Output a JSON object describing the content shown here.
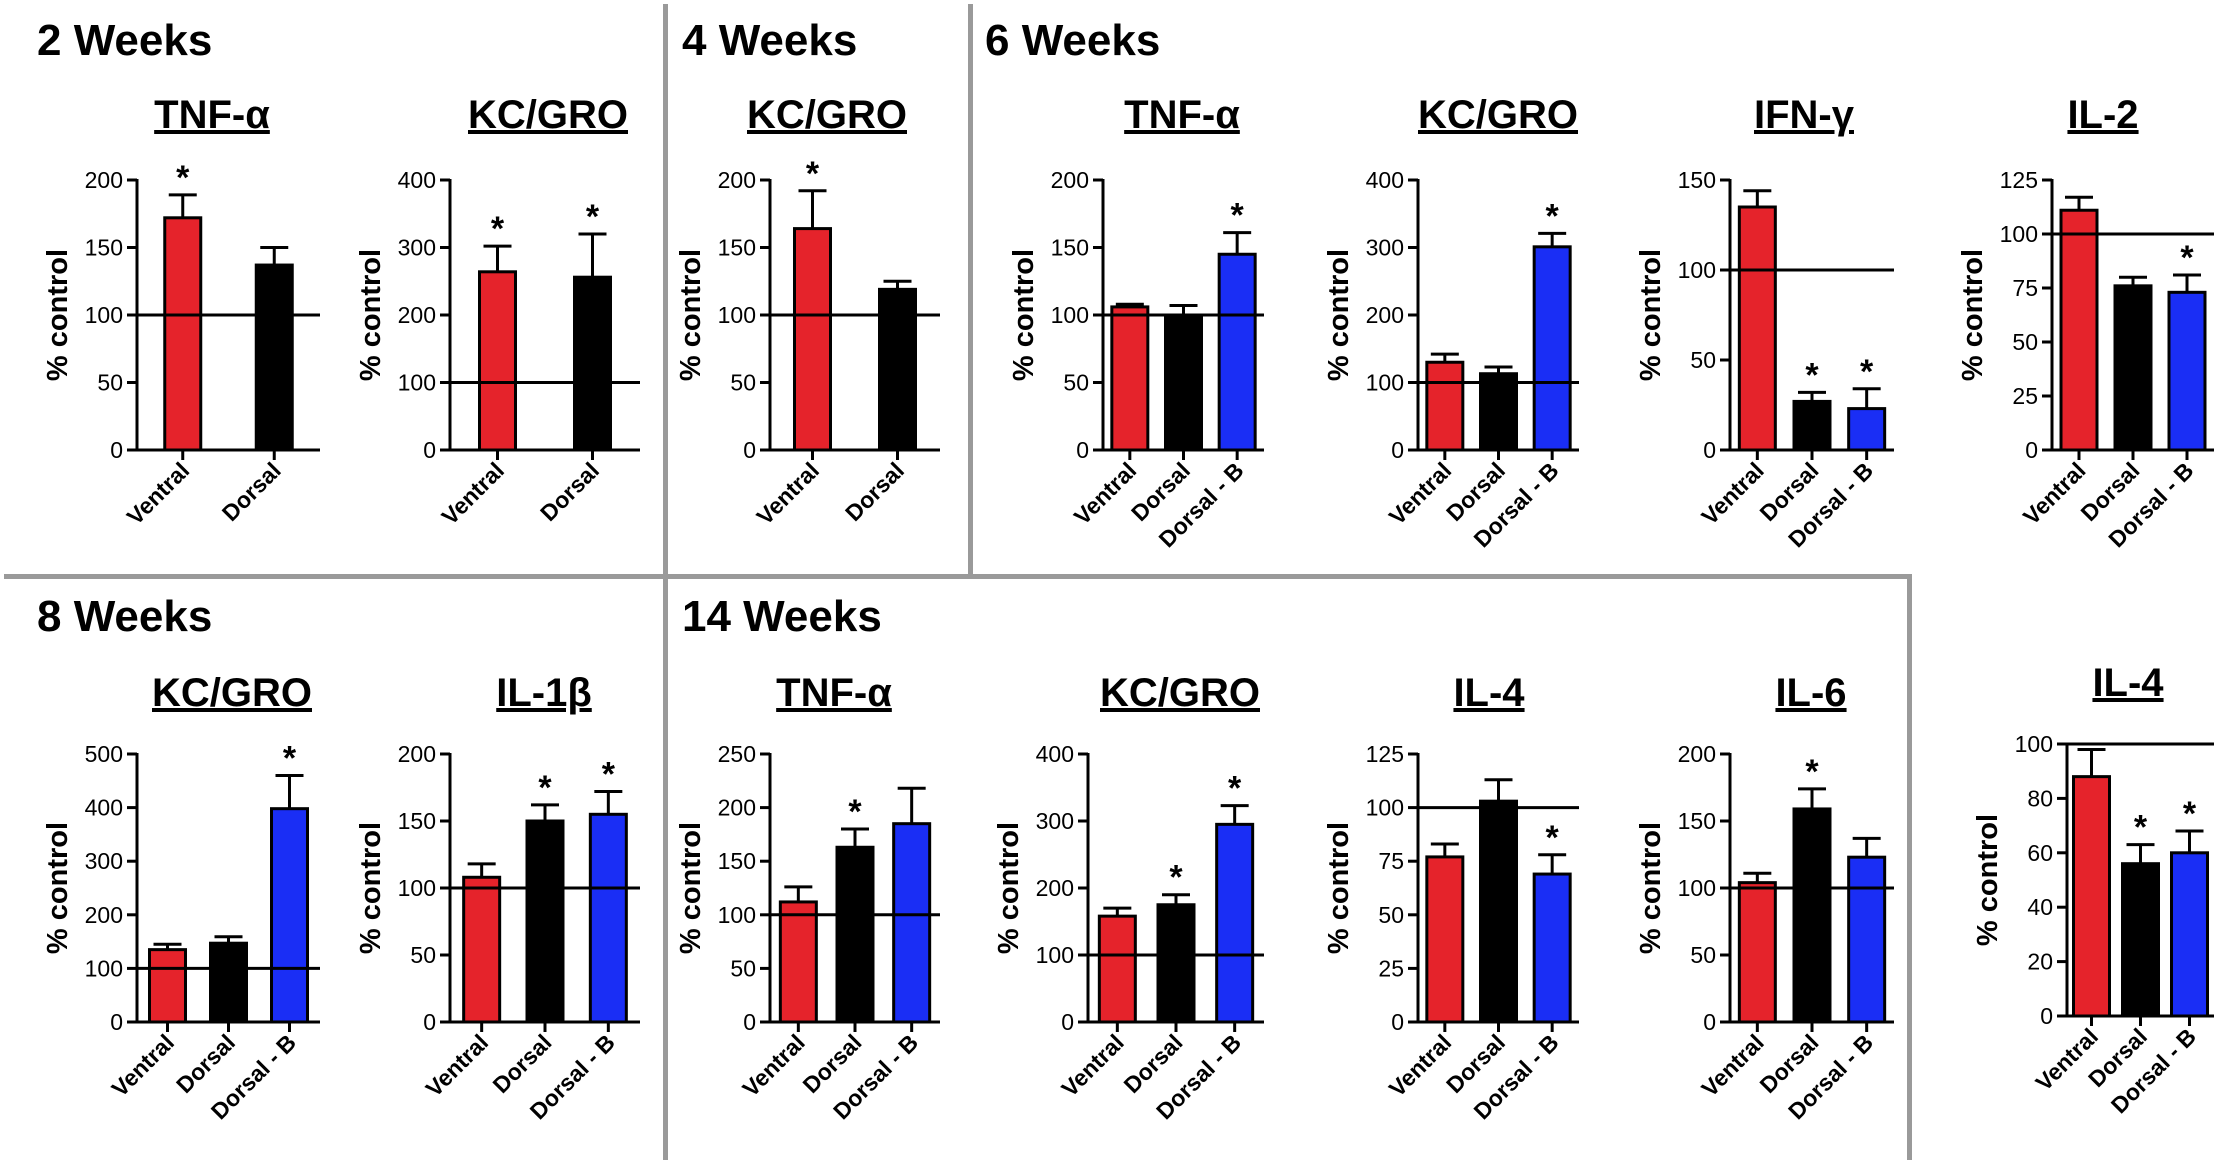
{
  "sections": [
    {
      "label": "2 Weeks"
    },
    {
      "label": "4 Weeks"
    },
    {
      "label": "6 Weeks"
    },
    {
      "label": "8 Weeks"
    },
    {
      "label": "14 Weeks"
    }
  ],
  "colors": {
    "ventral": "#e5232b",
    "dorsal": "#000000",
    "dorsal_b": "#1a2ef5",
    "divider": "#9a9a9a"
  },
  "chart_data": [
    {
      "type": "bar",
      "section": "2 Weeks",
      "title": "TNF-α",
      "ylabel": "% control",
      "ylim": [
        0,
        200
      ],
      "yticks": [
        0,
        50,
        100,
        150,
        200
      ],
      "reference_line": 100,
      "categories": [
        "Ventral",
        "Dorsal"
      ],
      "values": [
        172,
        137
      ],
      "errors": [
        17,
        13
      ],
      "significant": [
        true,
        false
      ]
    },
    {
      "type": "bar",
      "section": "2 Weeks",
      "title": "KC/GRO",
      "ylabel": "% control",
      "ylim": [
        0,
        400
      ],
      "yticks": [
        0,
        100,
        200,
        300,
        400
      ],
      "reference_line": 100,
      "categories": [
        "Ventral",
        "Dorsal"
      ],
      "values": [
        264,
        256
      ],
      "errors": [
        38,
        64
      ],
      "significant": [
        true,
        true
      ]
    },
    {
      "type": "bar",
      "section": "4 Weeks",
      "title": "KC/GRO",
      "ylabel": "% control",
      "ylim": [
        0,
        200
      ],
      "yticks": [
        0,
        50,
        100,
        150,
        200
      ],
      "reference_line": 100,
      "categories": [
        "Ventral",
        "Dorsal"
      ],
      "values": [
        164,
        119
      ],
      "errors": [
        28,
        6
      ],
      "significant": [
        true,
        false
      ]
    },
    {
      "type": "bar",
      "section": "6 Weeks",
      "title": "TNF-α",
      "ylabel": "% control",
      "ylim": [
        0,
        200
      ],
      "yticks": [
        0,
        50,
        100,
        150,
        200
      ],
      "reference_line": 100,
      "categories": [
        "Ventral",
        "Dorsal",
        "Dorsal - B"
      ],
      "values": [
        106,
        98,
        145
      ],
      "errors": [
        2,
        9,
        16
      ],
      "significant": [
        false,
        false,
        true
      ]
    },
    {
      "type": "bar",
      "section": "6 Weeks",
      "title": "KC/GRO",
      "ylabel": "% control",
      "ylim": [
        0,
        400
      ],
      "yticks": [
        0,
        100,
        200,
        300,
        400
      ],
      "reference_line": 100,
      "categories": [
        "Ventral",
        "Dorsal",
        "Dorsal - B"
      ],
      "values": [
        130,
        113,
        301
      ],
      "errors": [
        12,
        10,
        20
      ],
      "significant": [
        false,
        false,
        true
      ]
    },
    {
      "type": "bar",
      "section": "6 Weeks",
      "title": "IFN-γ",
      "ylabel": "% control",
      "ylim": [
        0,
        150
      ],
      "yticks": [
        0,
        50,
        100,
        150
      ],
      "reference_line": 100,
      "categories": [
        "Ventral",
        "Dorsal",
        "Dorsal - B"
      ],
      "values": [
        135,
        27,
        23
      ],
      "errors": [
        9,
        5,
        11
      ],
      "significant": [
        false,
        true,
        true
      ]
    },
    {
      "type": "bar",
      "section": "6 Weeks",
      "title": "IL-2",
      "ylabel": "% control",
      "ylim": [
        0,
        125
      ],
      "yticks": [
        0,
        25,
        50,
        75,
        100,
        125
      ],
      "reference_line": 100,
      "categories": [
        "Ventral",
        "Dorsal",
        "Dorsal - B"
      ],
      "values": [
        111,
        76,
        73
      ],
      "errors": [
        6,
        4,
        8
      ],
      "significant": [
        false,
        false,
        true
      ]
    },
    {
      "type": "bar",
      "section": "8 Weeks",
      "title": "KC/GRO",
      "ylabel": "% control",
      "ylim": [
        0,
        500
      ],
      "yticks": [
        0,
        100,
        200,
        300,
        400,
        500
      ],
      "reference_line": 100,
      "categories": [
        "Ventral",
        "Dorsal",
        "Dorsal - B"
      ],
      "values": [
        135,
        147,
        398
      ],
      "errors": [
        10,
        12,
        62
      ],
      "significant": [
        false,
        false,
        true
      ]
    },
    {
      "type": "bar",
      "section": "8 Weeks",
      "title": "IL-1β",
      "ylabel": "% control",
      "ylim": [
        0,
        200
      ],
      "yticks": [
        0,
        50,
        100,
        150,
        200
      ],
      "reference_line": 100,
      "categories": [
        "Ventral",
        "Dorsal",
        "Dorsal - B"
      ],
      "values": [
        108,
        150,
        155
      ],
      "errors": [
        10,
        12,
        17
      ],
      "significant": [
        false,
        true,
        true
      ]
    },
    {
      "type": "bar",
      "section": "14 Weeks",
      "title": "TNF-α",
      "ylabel": "% control",
      "ylim": [
        0,
        250
      ],
      "yticks": [
        0,
        50,
        100,
        150,
        200,
        250
      ],
      "reference_line": 100,
      "categories": [
        "Ventral",
        "Dorsal",
        "Dorsal - B"
      ],
      "values": [
        112,
        163,
        185
      ],
      "errors": [
        14,
        17,
        33
      ],
      "significant": [
        false,
        true,
        false
      ]
    },
    {
      "type": "bar",
      "section": "14 Weeks",
      "title": "KC/GRO",
      "ylabel": "% control",
      "ylim": [
        0,
        400
      ],
      "yticks": [
        0,
        100,
        200,
        300,
        400
      ],
      "reference_line": 100,
      "categories": [
        "Ventral",
        "Dorsal",
        "Dorsal - B"
      ],
      "values": [
        158,
        175,
        295
      ],
      "errors": [
        12,
        15,
        28
      ],
      "significant": [
        false,
        true,
        true
      ]
    },
    {
      "type": "bar",
      "section": "14 Weeks",
      "title": "IL-4",
      "ylabel": "% control",
      "ylim": [
        0,
        125
      ],
      "yticks": [
        0,
        25,
        50,
        75,
        100,
        125
      ],
      "reference_line": 100,
      "categories": [
        "Ventral",
        "Dorsal",
        "Dorsal - B"
      ],
      "values": [
        77,
        103,
        69
      ],
      "errors": [
        6,
        10,
        9
      ],
      "significant": [
        false,
        false,
        true
      ]
    },
    {
      "type": "bar",
      "section": "14 Weeks",
      "title": "IL-6",
      "ylabel": "% control",
      "ylim": [
        0,
        200
      ],
      "yticks": [
        0,
        50,
        100,
        150,
        200
      ],
      "reference_line": 100,
      "categories": [
        "Ventral",
        "Dorsal",
        "Dorsal - B"
      ],
      "values": [
        104,
        159,
        123
      ],
      "errors": [
        7,
        15,
        14
      ],
      "significant": [
        false,
        true,
        false
      ]
    },
    {
      "type": "bar",
      "section": "",
      "title": "IL-4",
      "ylabel": "% control",
      "ylim": [
        0,
        100
      ],
      "yticks": [
        0,
        20,
        40,
        60,
        80,
        100
      ],
      "reference_line": 100,
      "categories": [
        "Ventral",
        "Dorsal",
        "Dorsal - B"
      ],
      "values": [
        88,
        56,
        60
      ],
      "errors": [
        10,
        7,
        8
      ],
      "significant": [
        false,
        true,
        true
      ]
    }
  ]
}
